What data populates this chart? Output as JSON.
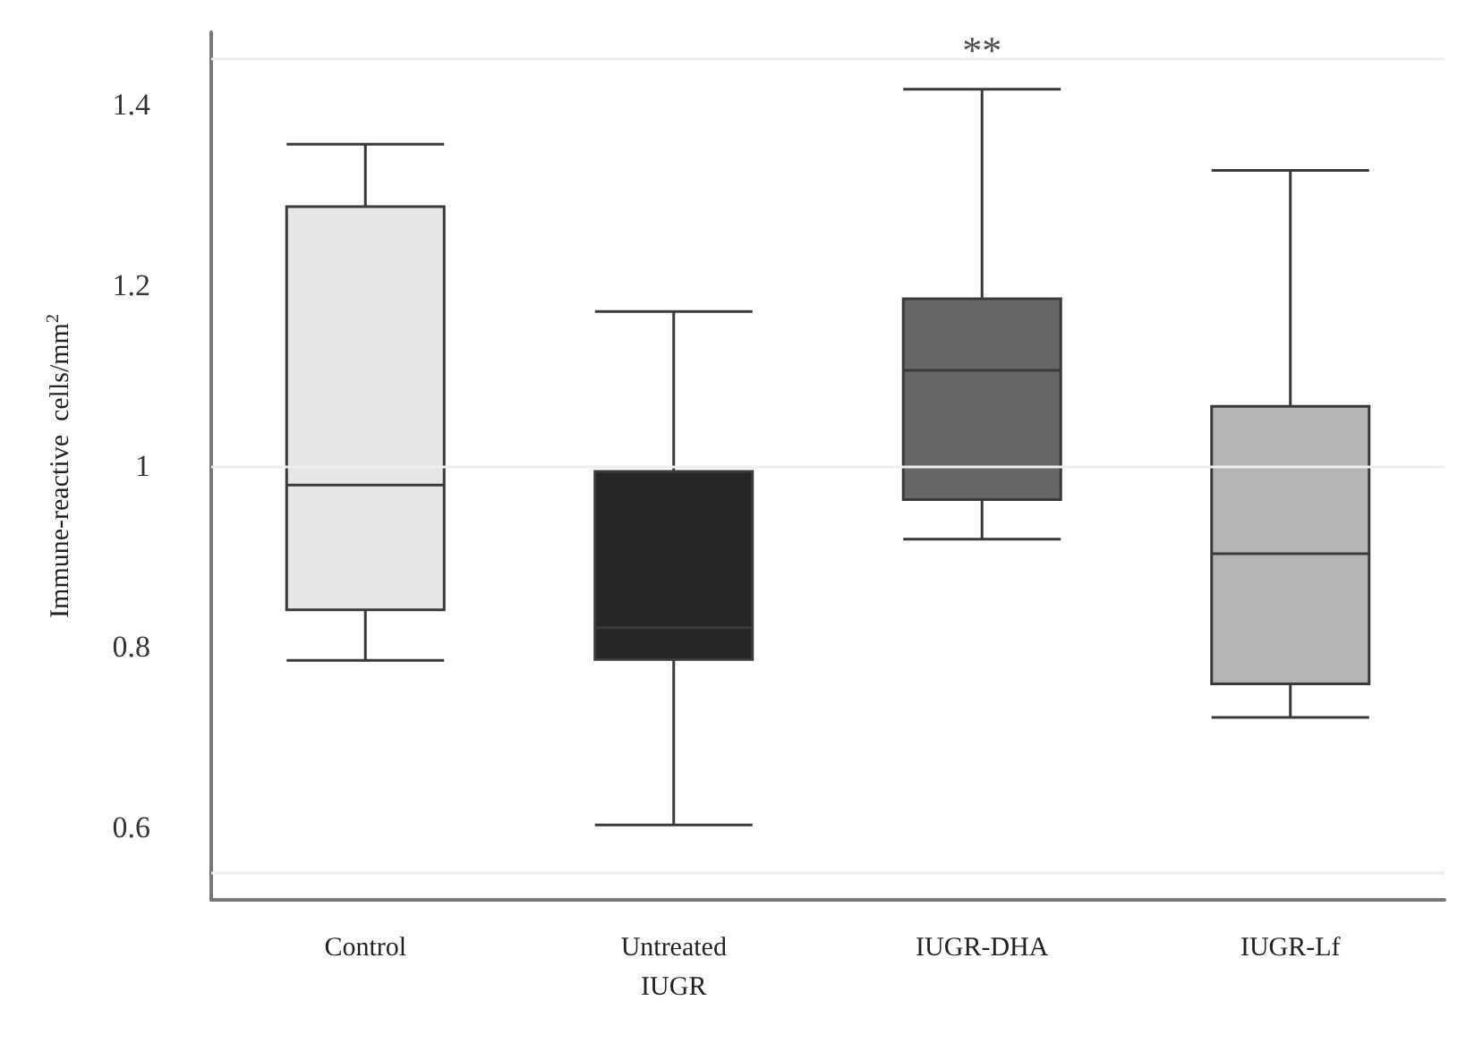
{
  "chart_data": {
    "type": "box",
    "ylabel": "Immune-reactive  cells/mm$^{2}$",
    "categories": [
      "Control",
      "Untreated\nIUGR",
      "IUGR-DHA",
      "IUGR-Lf"
    ],
    "colors": [
      "#e6e6e6",
      "#262626",
      "#666666",
      "#b3b3b3"
    ],
    "boxes": [
      {
        "low": 0.785,
        "q1": 0.841,
        "median": 0.979,
        "q3": 1.287,
        "high": 1.356
      },
      {
        "low": 0.603,
        "q1": 0.786,
        "median": 0.821,
        "q3": 0.994,
        "high": 1.171
      },
      {
        "low": 0.919,
        "q1": 0.963,
        "median": 1.106,
        "q3": 1.185,
        "high": 1.417
      },
      {
        "low": 0.722,
        "q1": 0.759,
        "median": 0.903,
        "q3": 1.066,
        "high": 1.327
      }
    ],
    "ylim": [
      0.52,
      1.48
    ],
    "yticks": [
      0.6,
      0.8,
      1,
      1.2,
      1.4
    ],
    "ref_lines": [
      {
        "axis": "y",
        "value": 0.55,
        "color": "#eeeeee"
      },
      {
        "axis": "y",
        "value": 1.0,
        "color": "#eeeeee"
      },
      {
        "axis": "y",
        "value": 1.45,
        "color": "#eeeeee"
      }
    ],
    "annotations": [
      {
        "text": "**",
        "x": "IUGR-DHA",
        "y": 1.46
      }
    ]
  }
}
